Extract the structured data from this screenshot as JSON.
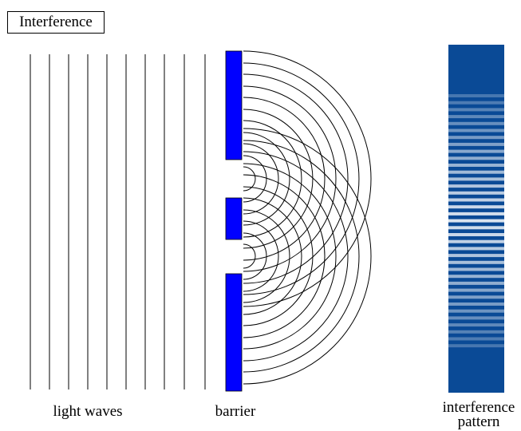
{
  "title": "Interference",
  "labels": {
    "light_waves": "light waves",
    "barrier": "barrier",
    "pattern_line1": "interference",
    "pattern_line2": "pattern"
  },
  "colors": {
    "wave_lines": "#000000",
    "barrier": "#0000ff",
    "pattern_background": "#0a4a96",
    "pattern_bright_band": "#ffffff"
  }
}
